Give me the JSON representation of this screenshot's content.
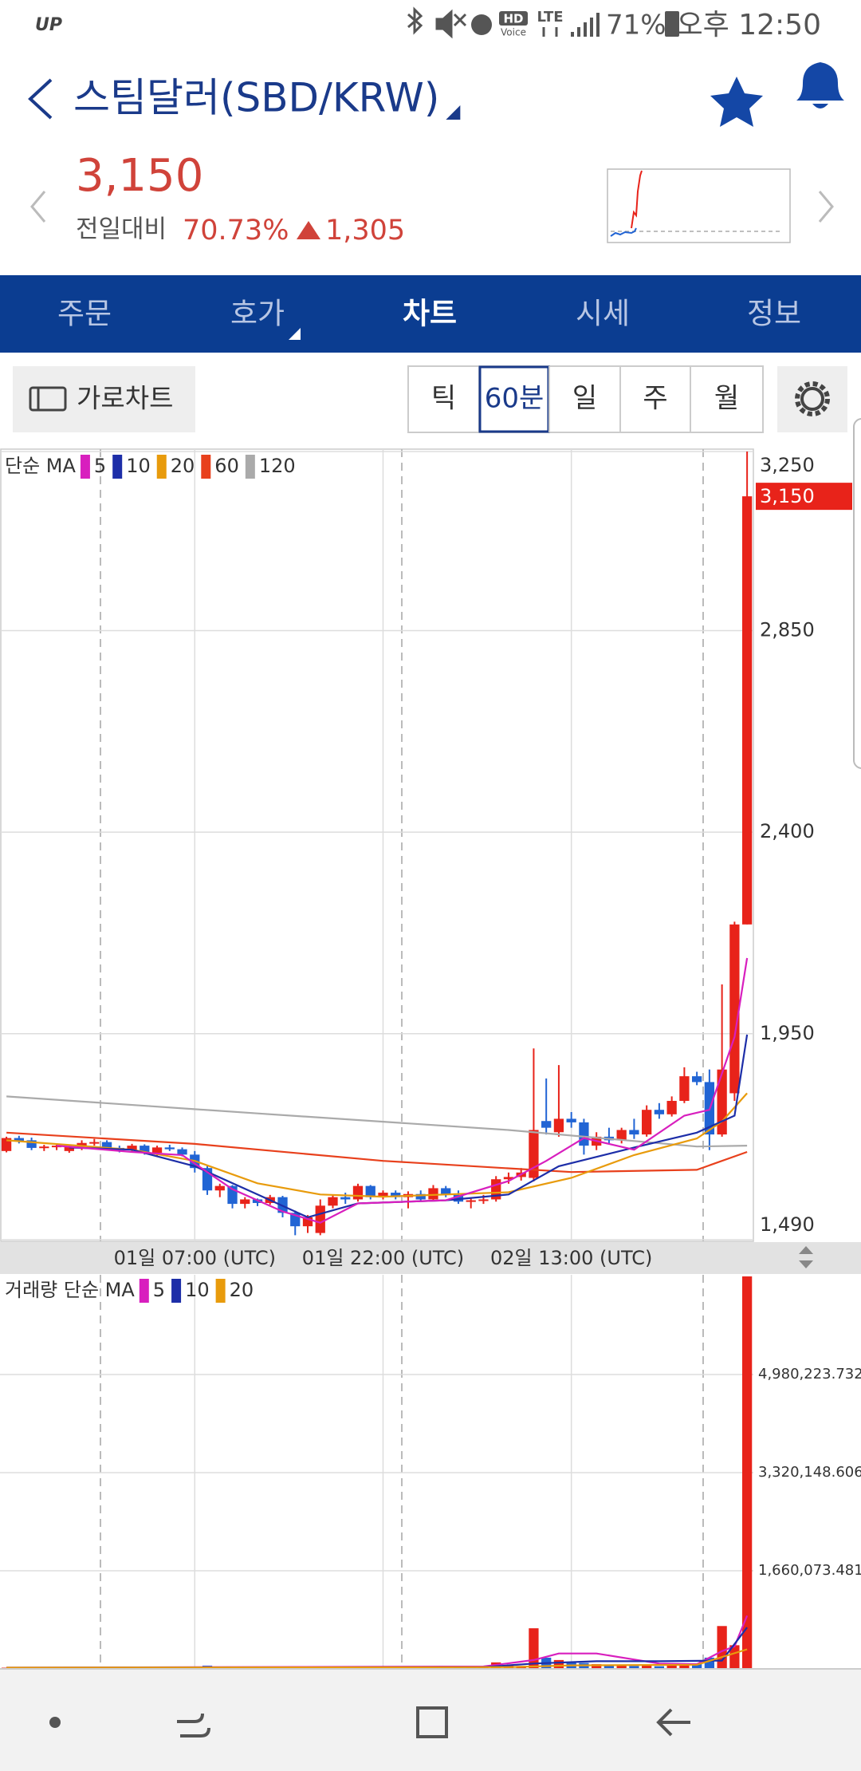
{
  "status_bar": {
    "carrier": "UP",
    "hd": "HD",
    "voice": "Voice",
    "network": "LTE",
    "battery": "71%",
    "time": "오후 12:50"
  },
  "header": {
    "title": "스팀달러(SBD/KRW)"
  },
  "quote": {
    "price": "3,150",
    "change_label": "전일대비",
    "change_percent": "70.73%",
    "change": "1,305"
  },
  "tabs": {
    "items": [
      "주문",
      "호가",
      "차트",
      "시세",
      "정보"
    ],
    "active": 2
  },
  "toolbar": {
    "landscape_button": "가로차트",
    "intervals": [
      "틱",
      "60분",
      "일",
      "주",
      "월"
    ],
    "active_interval": 1
  },
  "chart_data": [
    {
      "type": "candlestick",
      "legend_title": "단순 MA",
      "up_color": "#e8231a",
      "down_color": "#2164d4",
      "x": [
        0,
        1,
        2,
        3,
        4,
        5,
        6,
        7,
        8,
        9,
        10,
        11,
        12,
        13,
        14,
        15,
        16,
        17,
        18,
        19,
        20,
        21,
        22,
        23,
        24,
        25,
        26,
        27,
        28,
        29,
        30,
        31,
        32,
        33,
        34,
        35,
        36,
        37,
        38,
        39,
        40,
        41,
        42,
        43,
        44,
        45,
        46,
        47,
        48,
        49,
        50,
        51,
        52,
        53,
        54,
        55,
        56,
        57,
        58,
        59
      ],
      "open": [
        1688,
        1717,
        1712,
        1695,
        1698,
        1688,
        1697,
        1706,
        1708,
        1695,
        1690,
        1700,
        1684,
        1696,
        1692,
        1680,
        1650,
        1600,
        1610,
        1570,
        1580,
        1572,
        1585,
        1550,
        1520,
        1505,
        1566,
        1585,
        1580,
        1610,
        1585,
        1595,
        1585,
        1592,
        1580,
        1605,
        1590,
        1575,
        1578,
        1580,
        1625,
        1630,
        1628,
        1755,
        1730,
        1760,
        1752,
        1700,
        1720,
        1712,
        1735,
        1725,
        1780,
        1770,
        1800,
        1855,
        1842,
        1725,
        1817,
        2194
      ],
      "high": [
        1720,
        1722,
        1718,
        1702,
        1705,
        1700,
        1712,
        1715,
        1712,
        1700,
        1704,
        1703,
        1700,
        1702,
        1696,
        1688,
        1655,
        1615,
        1612,
        1585,
        1582,
        1590,
        1588,
        1555,
        1545,
        1580,
        1590,
        1595,
        1615,
        1612,
        1600,
        1600,
        1598,
        1600,
        1612,
        1610,
        1600,
        1582,
        1590,
        1632,
        1640,
        1650,
        1917,
        1850,
        1880,
        1775,
        1760,
        1730,
        1740,
        1740,
        1760,
        1790,
        1795,
        1810,
        1875,
        1865,
        1870,
        2060,
        2200,
        3250
      ],
      "low": [
        1685,
        1705,
        1690,
        1688,
        1690,
        1684,
        1690,
        1700,
        1692,
        1685,
        1686,
        1680,
        1678,
        1688,
        1676,
        1640,
        1590,
        1585,
        1560,
        1560,
        1565,
        1568,
        1540,
        1500,
        1505,
        1500,
        1560,
        1570,
        1575,
        1580,
        1580,
        1580,
        1560,
        1575,
        1578,
        1585,
        1570,
        1560,
        1570,
        1575,
        1615,
        1622,
        1620,
        1725,
        1720,
        1740,
        1680,
        1690,
        1705,
        1705,
        1715,
        1720,
        1760,
        1765,
        1795,
        1835,
        1690,
        1720,
        1800,
        2194
      ],
      "close": [
        1717,
        1710,
        1695,
        1698,
        1700,
        1697,
        1706,
        1708,
        1695,
        1690,
        1700,
        1684,
        1696,
        1692,
        1680,
        1650,
        1600,
        1610,
        1570,
        1580,
        1572,
        1585,
        1550,
        1520,
        1540,
        1566,
        1585,
        1580,
        1610,
        1585,
        1595,
        1585,
        1592,
        1580,
        1605,
        1590,
        1575,
        1578,
        1580,
        1625,
        1630,
        1640,
        1735,
        1740,
        1760,
        1752,
        1700,
        1720,
        1712,
        1735,
        1725,
        1780,
        1770,
        1800,
        1855,
        1842,
        1725,
        1870,
        2194,
        3150
      ],
      "xlim": [
        -0.45,
        59.5
      ],
      "ylim": [
        1490,
        3250
      ],
      "xticks": [
        {
          "value": 15,
          "label": "01일 07:00 (UTC)"
        },
        {
          "value": 30,
          "label": "01일 22:00 (UTC)"
        },
        {
          "value": 45,
          "label": "02일 13:00 (UTC)"
        }
      ],
      "yticks": [
        {
          "value": 1490,
          "label": "1,490"
        },
        {
          "value": 1950,
          "label": "1,950"
        },
        {
          "value": 2400,
          "label": "2,400"
        },
        {
          "value": 2850,
          "label": "2,850"
        },
        {
          "value": 3250,
          "label": "3,250"
        }
      ],
      "last_price": {
        "value": 3150,
        "label": "3,150"
      },
      "series": [
        {
          "name": "5",
          "color": "#d81fbe",
          "x": [
            4,
            10,
            14,
            18,
            22,
            25,
            28,
            35,
            40,
            43,
            46,
            50,
            54,
            56,
            58,
            59
          ],
          "values": [
            1700,
            1686,
            1679,
            1603,
            1553,
            1528,
            1571,
            1578,
            1621,
            1666,
            1717,
            1691,
            1767,
            1780,
            1943,
            2119
          ]
        },
        {
          "name": "10",
          "color": "#1d2ea8",
          "x": [
            5,
            10,
            15,
            20,
            24,
            28,
            35,
            40,
            44,
            50,
            55,
            58,
            59
          ],
          "values": [
            1696,
            1691,
            1654,
            1591,
            1540,
            1571,
            1578,
            1591,
            1654,
            1696,
            1729,
            1767,
            1948
          ]
        },
        {
          "name": "20",
          "color": "#e89b0c",
          "x": [
            0,
            10,
            15,
            20,
            25,
            30,
            40,
            45,
            50,
            55,
            57,
            59
          ],
          "values": [
            1712,
            1691,
            1666,
            1616,
            1591,
            1586,
            1596,
            1628,
            1679,
            1716,
            1754,
            1817
          ]
        },
        {
          "name": "60",
          "color": "#e8401c",
          "x": [
            0,
            15,
            30,
            45,
            55,
            59
          ],
          "values": [
            1729,
            1704,
            1666,
            1641,
            1646,
            1686
          ]
        },
        {
          "name": "120",
          "color": "#aaaaaa",
          "x": [
            0,
            20,
            40,
            55,
            59
          ],
          "values": [
            1810,
            1772,
            1735,
            1698,
            1700
          ]
        }
      ]
    },
    {
      "type": "bar",
      "legend_title": "거래량 단순 MA",
      "values": [
        20000,
        15000,
        18000,
        12000,
        10000,
        14000,
        16000,
        12000,
        9000,
        11000,
        13000,
        10000,
        12000,
        15000,
        20000,
        40000,
        55000,
        30000,
        35000,
        20000,
        18000,
        25000,
        30000,
        45000,
        35000,
        40000,
        25000,
        20000,
        28000,
        22000,
        18000,
        15000,
        20000,
        25000,
        30000,
        20000,
        22000,
        18000,
        20000,
        110000,
        60000,
        50000,
        687000,
        190000,
        150000,
        110000,
        100000,
        80000,
        70000,
        60000,
        50000,
        55000,
        45000,
        60000,
        80000,
        90000,
        190000,
        725000,
        400000,
        6640000
      ],
      "ylim": [
        0,
        6640298
      ],
      "yticks": [
        {
          "value": 1660073.481,
          "label": "1,660,073.481"
        },
        {
          "value": 3320148.606,
          "label": "3,320,148.606"
        },
        {
          "value": 4980223.732,
          "label": "4,980,223.732"
        }
      ],
      "series": [
        {
          "name": "5",
          "color": "#d81fbe",
          "x": [
            0,
            38,
            42,
            44,
            47,
            52,
            55,
            57,
            58,
            59
          ],
          "values": [
            20000,
            40000,
            150000,
            260000,
            260000,
            90000,
            80000,
            300000,
            380000,
            900000
          ]
        },
        {
          "name": "10",
          "color": "#1d2ea8",
          "x": [
            0,
            38,
            42,
            47,
            52,
            57,
            59
          ],
          "values": [
            20000,
            30000,
            90000,
            130000,
            130000,
            140000,
            700000
          ]
        },
        {
          "name": "20",
          "color": "#e89b0c",
          "x": [
            0,
            40,
            45,
            55,
            59
          ],
          "values": [
            20000,
            30000,
            60000,
            70000,
            330000
          ]
        }
      ]
    }
  ]
}
